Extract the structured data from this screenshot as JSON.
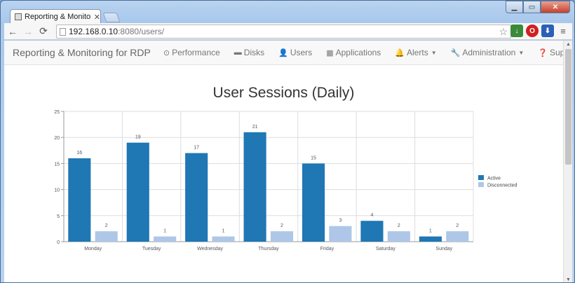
{
  "browser": {
    "tab_title": "Reporting & Monitoring f",
    "tab_close": "✕",
    "url_host": "192.168.0.10",
    "url_path": ":8080/users/",
    "window_controls": {
      "minimize": "▁",
      "maximize": "▭",
      "close": "✕"
    }
  },
  "navbar": {
    "brand": "Reporting & Monitoring for RDP",
    "items": [
      {
        "label": "Performance",
        "icon": "clock-icon",
        "glyph": "⊙"
      },
      {
        "label": "Disks",
        "icon": "hdd-icon",
        "glyph": "▬"
      },
      {
        "label": "Users",
        "icon": "user-icon",
        "glyph": "👤"
      },
      {
        "label": "Applications",
        "icon": "grid-icon",
        "glyph": "▦"
      },
      {
        "label": "Alerts",
        "icon": "bell-icon",
        "glyph": "🔔",
        "dropdown": true
      }
    ],
    "right_items": [
      {
        "label": "Administration",
        "icon": "wrench-icon",
        "glyph": "🔧",
        "dropdown": true
      },
      {
        "label": "Support",
        "icon": "question-icon",
        "glyph": "❓",
        "dropdown": true
      }
    ]
  },
  "chart_data": {
    "type": "bar",
    "title": "User Sessions (Daily)",
    "categories": [
      "Monday",
      "Tuesday",
      "Wednesday",
      "Thursday",
      "Friday",
      "Saturday",
      "Sunday"
    ],
    "series": [
      {
        "name": "Active",
        "color": "#1f77b4",
        "values": [
          16,
          19,
          17,
          21,
          15,
          4,
          1
        ]
      },
      {
        "name": "Disconnected",
        "color": "#aec7e8",
        "values": [
          2,
          1,
          1,
          2,
          3,
          2,
          2
        ]
      }
    ],
    "ylim": [
      0,
      25
    ],
    "yticks": [
      0,
      5,
      10,
      15,
      20,
      25
    ],
    "grid": true,
    "legend_position": "right",
    "data_labels": true
  }
}
